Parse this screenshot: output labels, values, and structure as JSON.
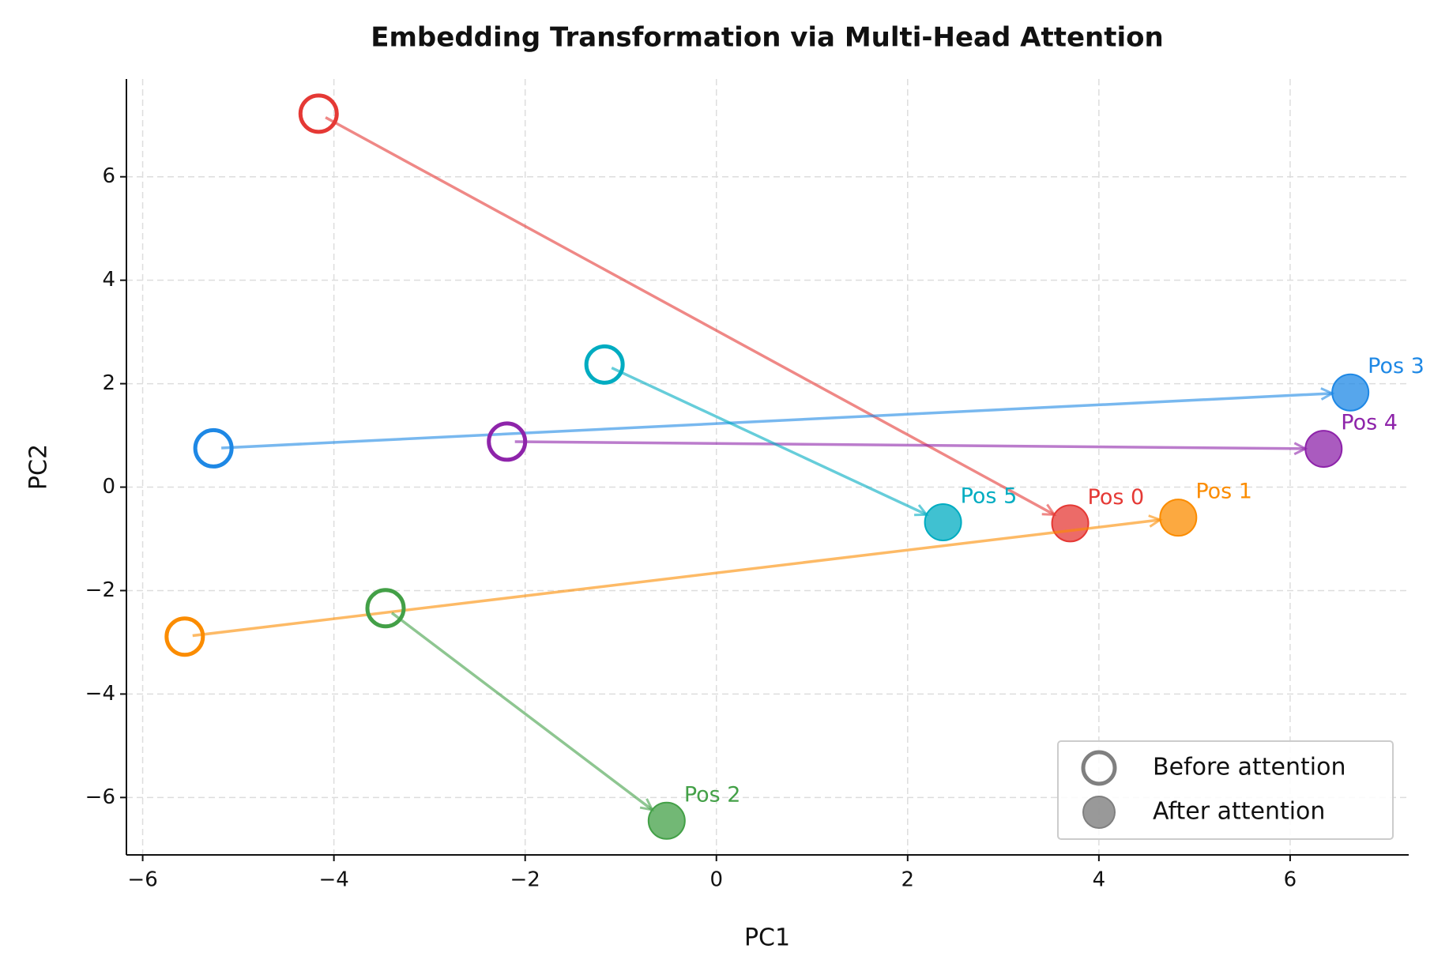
{
  "chart_data": {
    "type": "scatter",
    "title": "Embedding Transformation via Multi-Head Attention",
    "xlabel": "PC1",
    "ylabel": "PC2",
    "xlim": [
      -6.17,
      7.24
    ],
    "ylim": [
      -7.11,
      7.89
    ],
    "xticks": [
      {
        "value": -6,
        "label": "−6"
      },
      {
        "value": -4,
        "label": "−4"
      },
      {
        "value": -2,
        "label": "−2"
      },
      0,
      2,
      4,
      6
    ],
    "yticks": [
      {
        "value": -6,
        "label": "−6"
      },
      {
        "value": -4,
        "label": "−4"
      },
      {
        "value": -2,
        "label": "−2"
      },
      0,
      2,
      4,
      6
    ],
    "grid": true,
    "legend_loc": "lower right",
    "legend": [
      "Before attention",
      "After attention"
    ],
    "series": [
      {
        "name": "Pos 0",
        "color": "#e53935",
        "x": [
          -4.16,
          3.7
        ],
        "y": [
          7.22,
          -0.7
        ]
      },
      {
        "name": "Pos 1",
        "color": "#fb8c00",
        "x": [
          -5.56,
          4.83
        ],
        "y": [
          -2.89,
          -0.59
        ]
      },
      {
        "name": "Pos 2",
        "color": "#43a047",
        "x": [
          -3.46,
          -0.52
        ],
        "y": [
          -2.34,
          -6.45
        ]
      },
      {
        "name": "Pos 3",
        "color": "#1e88e5",
        "x": [
          -5.26,
          6.63
        ],
        "y": [
          0.75,
          1.83
        ]
      },
      {
        "name": "Pos 4",
        "color": "#8e24aa",
        "x": [
          -2.19,
          6.35
        ],
        "y": [
          0.88,
          0.74
        ]
      },
      {
        "name": "Pos 5",
        "color": "#00acc1",
        "x": [
          -1.17,
          2.37
        ],
        "y": [
          2.37,
          -0.68
        ]
      }
    ]
  }
}
